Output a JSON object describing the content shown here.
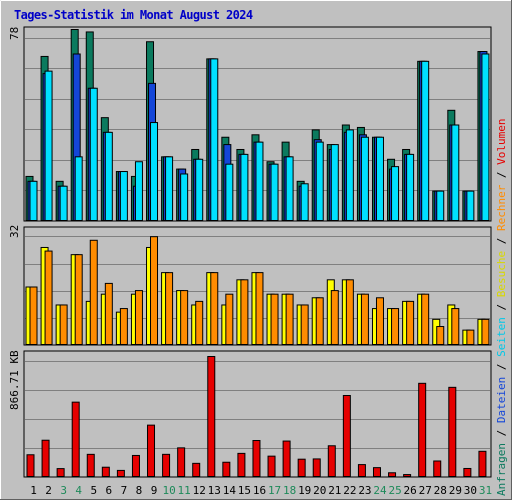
{
  "title": "Tages-Statistik im Monat August 2024",
  "colors": {
    "background": "#c0c0c0",
    "grid": "#808080",
    "title": "#0000c8",
    "hits": "#0b7a5e",
    "files": "#1446d8",
    "pages": "#00e0ff",
    "visits": "#ffff00",
    "sites": "#ff8c00",
    "kbytes": "#e60000",
    "weekend_label": "#1e8a5a",
    "weekday_label": "#000000"
  },
  "panel1_max_label": "78",
  "panel2_max_label": "32",
  "panel3_max_label": "866.71 KB",
  "right_axis_label": {
    "parts": [
      {
        "text": "Anfragen",
        "color": "#0b7a5e"
      },
      {
        "text": " / ",
        "color": "#000000"
      },
      {
        "text": "Dateien",
        "color": "#1446d8"
      },
      {
        "text": " / ",
        "color": "#000000"
      },
      {
        "text": "Seiten",
        "color": "#00c8e8"
      },
      {
        "text": " / ",
        "color": "#000000"
      },
      {
        "text": "Besuche",
        "color": "#d8d800"
      },
      {
        "text": " / ",
        "color": "#000000"
      },
      {
        "text": "Rechner",
        "color": "#ff8c00"
      },
      {
        "text": " / ",
        "color": "#000000"
      },
      {
        "text": "Volumen",
        "color": "#e60000"
      }
    ]
  },
  "chart_data": {
    "type": "bar",
    "title": "Tages-Statistik im Monat August 2024",
    "categories": [
      "1",
      "2",
      "3",
      "4",
      "5",
      "6",
      "7",
      "8",
      "9",
      "10",
      "11",
      "12",
      "13",
      "14",
      "15",
      "16",
      "17",
      "18",
      "19",
      "20",
      "21",
      "22",
      "23",
      "24",
      "25",
      "26",
      "27",
      "28",
      "29",
      "30",
      "31"
    ],
    "weekend_days": [
      3,
      4,
      10,
      11,
      17,
      18,
      24,
      25,
      31
    ],
    "panels": [
      {
        "name": "requests",
        "ylim": [
          0,
          78
        ],
        "series": [
          {
            "name": "Anfragen",
            "values": [
              18,
              67,
              16,
              78,
              77,
              42,
              20,
              18,
              73,
              26,
              21,
              29,
              66,
              34,
              29,
              35,
              24,
              32,
              16,
              37,
              31,
              39,
              38,
              34,
              25,
              29,
              65,
              12,
              45,
              12,
              69
            ]
          },
          {
            "name": "Dateien",
            "values": [
              16,
              60,
              14,
              68,
              54,
              36,
              20,
              14,
              56,
              26,
              21,
              25,
              66,
              31,
              27,
              32,
              23,
              26,
              14,
              33,
              29,
              36,
              35,
              34,
              21,
              27,
              65,
              12,
              39,
              12,
              69
            ]
          },
          {
            "name": "Seiten",
            "values": [
              16,
              61,
              14,
              26,
              54,
              36,
              20,
              24,
              40,
              26,
              19,
              25,
              66,
              23,
              27,
              32,
              23,
              26,
              15,
              32,
              31,
              37,
              34,
              34,
              22,
              27,
              65,
              12,
              39,
              12,
              68
            ]
          }
        ]
      },
      {
        "name": "visits",
        "ylim": [
          0,
          32
        ],
        "series": [
          {
            "name": "Besuche",
            "values": [
              16,
              27,
              11,
              25,
              12,
              14,
              9,
              14,
              27,
              20,
              15,
              11,
              20,
              11,
              18,
              20,
              14,
              14,
              11,
              13,
              18,
              18,
              14,
              10,
              10,
              12,
              14,
              7,
              11,
              4,
              7
            ]
          },
          {
            "name": "Rechner",
            "values": [
              16,
              26,
              11,
              25,
              29,
              17,
              10,
              15,
              30,
              20,
              15,
              12,
              20,
              14,
              18,
              20,
              14,
              14,
              11,
              13,
              15,
              18,
              14,
              13,
              10,
              12,
              14,
              5,
              10,
              4,
              7
            ]
          }
        ]
      },
      {
        "name": "volume",
        "ylabel": "KB",
        "ylim": [
          0,
          866.71
        ],
        "series": [
          {
            "name": "Volumen",
            "values": [
              157,
              262,
              57,
              537,
              160,
              67,
              44,
              152,
              371,
              160,
              207,
              95,
              866.71,
              103,
              167,
              260,
              147,
              256,
              125,
              127,
              222,
              585,
              86,
              64,
              27,
              14,
              673,
              112,
              644,
              58,
              182
            ]
          }
        ]
      }
    ],
    "legend": [
      "Anfragen",
      "Dateien",
      "Seiten",
      "Besuche",
      "Rechner",
      "Volumen"
    ],
    "grid": true
  }
}
